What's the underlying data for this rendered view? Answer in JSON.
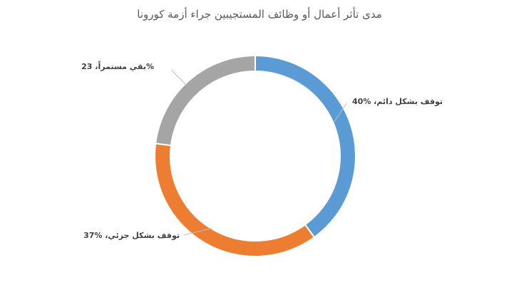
{
  "chart_data": {
    "type": "pie",
    "donut": true,
    "title": "مدى تأثر أعمال أو وظائف المستجيبين جراء أزمة كورونا",
    "slices": [
      {
        "label": "توقف بشكل دائم",
        "value": 40,
        "value_text": "%40",
        "color": "#5B9BD5"
      },
      {
        "label": "توقف بشكل جزئي",
        "value": 37,
        "value_text": "%37",
        "color": "#ED7D31"
      },
      {
        "label": "بقي مستمراً",
        "value": 23,
        "value_text": "23%",
        "color": "#A5A5A5"
      }
    ],
    "legend": "none",
    "data_labels": "outside-with-leader-lines"
  }
}
